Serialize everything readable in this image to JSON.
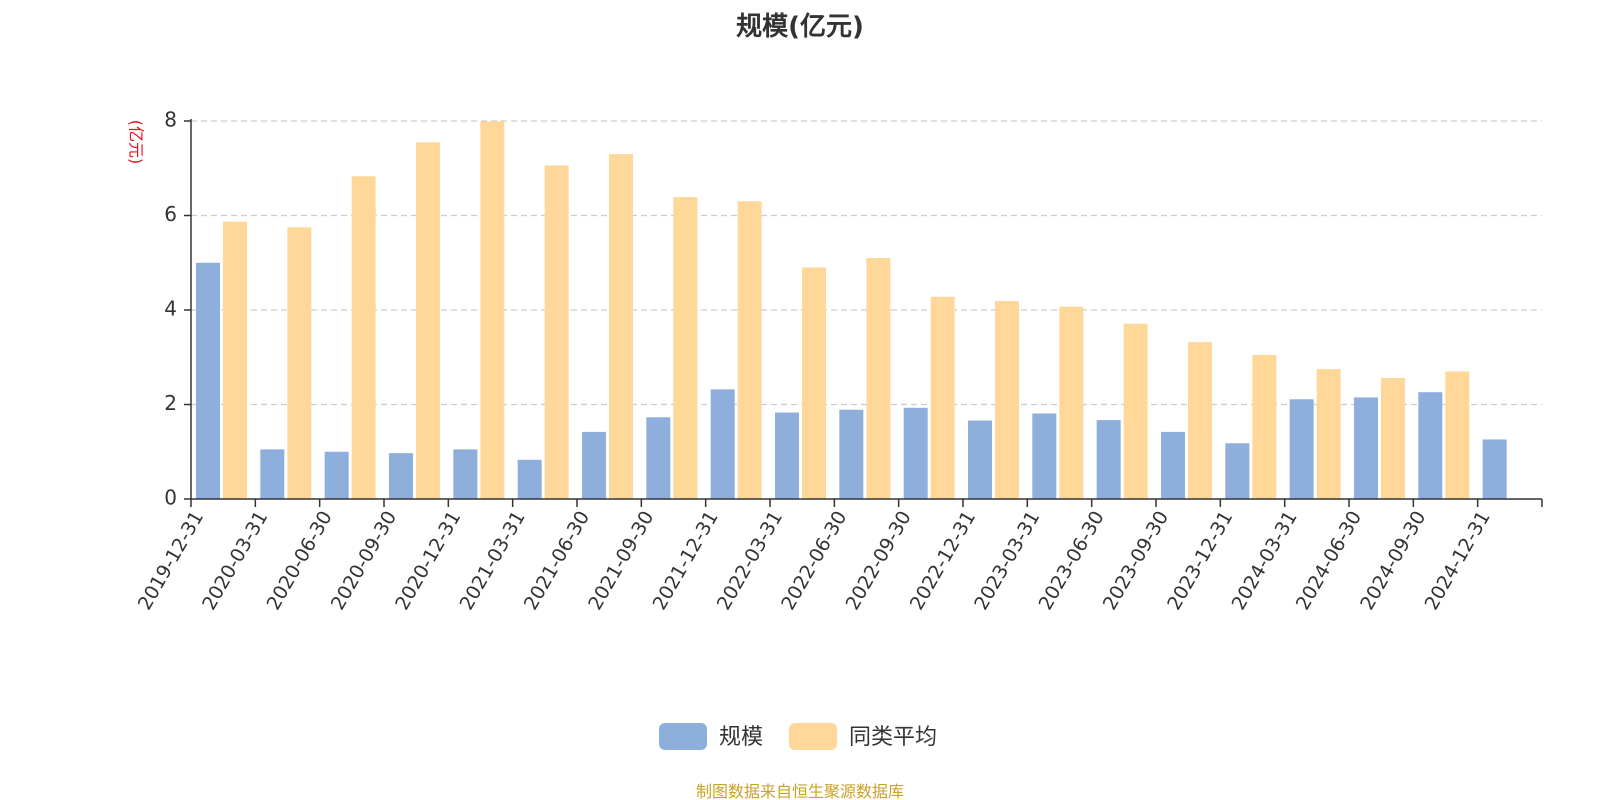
{
  "title": "规模(亿元)",
  "source": "制图数据来自恒生聚源数据库",
  "colors": {
    "series1": "#8eaedc",
    "series2": "#ffd899",
    "unit_text": "#e8101a",
    "source_text": "#c9a227",
    "grid": "#cccccc",
    "axis": "#333333"
  },
  "chart_data": {
    "type": "bar",
    "title": "规模(亿元)",
    "ylabel": "亿元",
    "ylabel_display": "(亿元)",
    "ylim": [
      0,
      8
    ],
    "yticks": [
      0,
      2,
      4,
      6,
      8
    ],
    "grid": true,
    "legend_position": "bottom-center",
    "categories": [
      "2019-12-31",
      "2020-03-31",
      "2020-06-30",
      "2020-09-30",
      "2020-12-31",
      "2021-03-31",
      "2021-06-30",
      "2021-09-30",
      "2021-12-31",
      "2022-03-31",
      "2022-06-30",
      "2022-09-30",
      "2022-12-31",
      "2023-03-31",
      "2023-06-30",
      "2023-09-30",
      "2023-12-31",
      "2024-03-31",
      "2024-06-30",
      "2024-09-30",
      "2024-12-31"
    ],
    "series": [
      {
        "name": "规模",
        "values": [
          5.0,
          1.05,
          1.0,
          0.97,
          1.05,
          0.83,
          1.42,
          1.73,
          2.32,
          1.83,
          1.89,
          1.93,
          1.66,
          1.81,
          1.67,
          1.42,
          1.18,
          2.11,
          2.15,
          2.26,
          1.26
        ]
      },
      {
        "name": "同类平均",
        "values": [
          5.87,
          5.75,
          6.83,
          7.55,
          7.99,
          7.06,
          7.3,
          6.39,
          6.3,
          4.9,
          5.1,
          4.28,
          4.19,
          4.07,
          3.71,
          3.32,
          3.05,
          2.75,
          2.56,
          2.7,
          null
        ]
      }
    ]
  }
}
